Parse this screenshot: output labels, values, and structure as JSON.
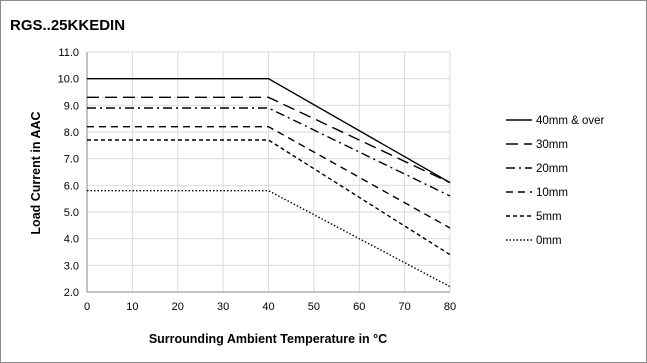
{
  "chart_data": {
    "type": "line",
    "title": "RGS..25KKEDIN",
    "xlabel": "Surrounding Ambient Temperature in °C",
    "ylabel": "Load Current in AAC",
    "xlim": [
      0,
      80
    ],
    "ylim": [
      2.0,
      11.0
    ],
    "x_ticks": [
      "0",
      "10",
      "20",
      "30",
      "40",
      "50",
      "60",
      "70",
      "80"
    ],
    "y_ticks": [
      "2.0",
      "3.0",
      "4.0",
      "5.0",
      "6.0",
      "7.0",
      "8.0",
      "9.0",
      "10.0",
      "11.0"
    ],
    "grid": true,
    "legend_position": "right",
    "series": [
      {
        "name": "40mm & over",
        "dash": "solid",
        "x": [
          0,
          40,
          80
        ],
        "values": [
          10.0,
          10.0,
          6.1
        ]
      },
      {
        "name": "30mm",
        "dash": "long-dash",
        "x": [
          0,
          40,
          80
        ],
        "values": [
          9.3,
          9.3,
          6.1
        ]
      },
      {
        "name": "20mm",
        "dash": "dash-dot",
        "x": [
          0,
          40,
          80
        ],
        "values": [
          8.9,
          8.9,
          5.6
        ]
      },
      {
        "name": "10mm",
        "dash": "dash",
        "x": [
          0,
          40,
          80
        ],
        "values": [
          8.2,
          8.2,
          4.4
        ]
      },
      {
        "name": "5mm",
        "dash": "short-dash",
        "x": [
          0,
          40,
          80
        ],
        "values": [
          7.7,
          7.7,
          3.4
        ]
      },
      {
        "name": "0mm",
        "dash": "dotted",
        "x": [
          0,
          40,
          80
        ],
        "values": [
          5.8,
          5.8,
          2.2
        ]
      }
    ],
    "colors": {
      "line": "#000000",
      "grid": "#d9d9d9",
      "axis": "#868686",
      "frame": "#8c8c8c"
    }
  }
}
